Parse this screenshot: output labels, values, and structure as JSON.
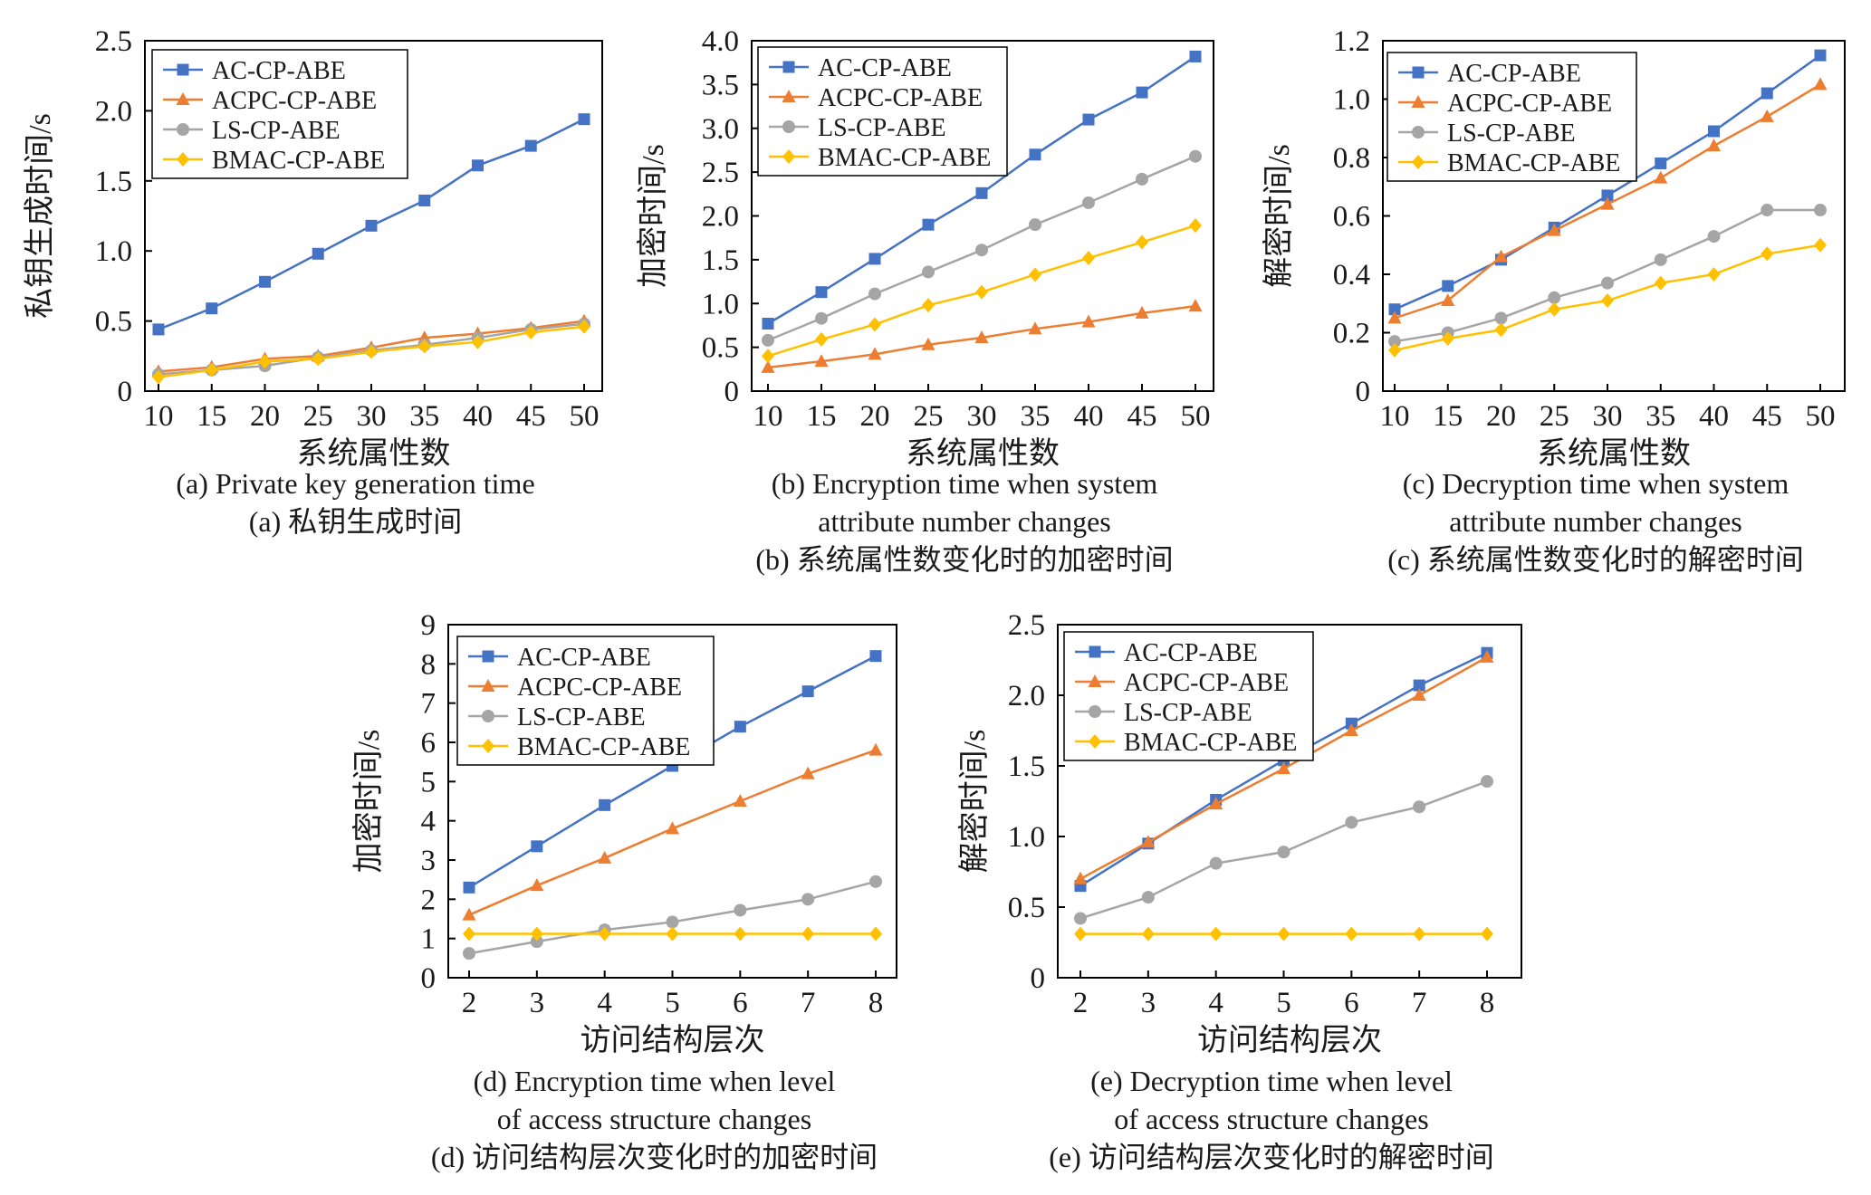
{
  "figure": {
    "series_names": [
      "AC-CP-ABE",
      "ACPC-CP-ABE",
      "LS-CP-ABE",
      "BMAC-CP-ABE"
    ],
    "series_colors": [
      "#4472c4",
      "#ed7d31",
      "#a5a5a5",
      "#ffc000"
    ],
    "series_markers": [
      "square",
      "triangle",
      "circle",
      "diamond"
    ]
  },
  "chart_data": [
    {
      "id": "a",
      "type": "line",
      "x": [
        10,
        15,
        20,
        25,
        30,
        35,
        40,
        45,
        50
      ],
      "ylim": [
        0,
        2.5
      ],
      "yticks": [
        "0",
        "0.5",
        "1.0",
        "1.5",
        "2.0",
        "2.5"
      ],
      "xlabel": "系统属性数",
      "ylabel": "私钥生成时间/s",
      "caption": [
        "(a) Private key generation time",
        "(a) 私钥生成时间"
      ],
      "series": [
        {
          "name": "AC-CP-ABE",
          "values": [
            0.44,
            0.59,
            0.78,
            0.98,
            1.18,
            1.36,
            1.61,
            1.75,
            1.94
          ]
        },
        {
          "name": "ACPC-CP-ABE",
          "values": [
            0.14,
            0.17,
            0.23,
            0.25,
            0.31,
            0.38,
            0.41,
            0.45,
            0.5
          ]
        },
        {
          "name": "LS-CP-ABE",
          "values": [
            0.12,
            0.15,
            0.18,
            0.24,
            0.29,
            0.33,
            0.38,
            0.44,
            0.48
          ]
        },
        {
          "name": "BMAC-CP-ABE",
          "values": [
            0.1,
            0.15,
            0.21,
            0.23,
            0.28,
            0.32,
            0.35,
            0.42,
            0.46
          ]
        }
      ]
    },
    {
      "id": "b",
      "type": "line",
      "x": [
        10,
        15,
        20,
        25,
        30,
        35,
        40,
        45,
        50
      ],
      "ylim": [
        0,
        4.0
      ],
      "yticks": [
        "0",
        "0.5",
        "1.0",
        "1.5",
        "2.0",
        "2.5",
        "3.0",
        "3.5",
        "4.0"
      ],
      "xlabel": "系统属性数",
      "ylabel": "加密时间/s",
      "caption": [
        "(b) Encryption time when system",
        "attribute number changes",
        "(b) 系统属性数变化时的加密时间"
      ],
      "series": [
        {
          "name": "AC-CP-ABE",
          "values": [
            0.77,
            1.13,
            1.51,
            1.9,
            2.26,
            2.7,
            3.1,
            3.41,
            3.82
          ]
        },
        {
          "name": "ACPC-CP-ABE",
          "values": [
            0.27,
            0.34,
            0.42,
            0.53,
            0.61,
            0.71,
            0.79,
            0.89,
            0.97
          ]
        },
        {
          "name": "LS-CP-ABE",
          "values": [
            0.58,
            0.83,
            1.11,
            1.36,
            1.61,
            1.9,
            2.15,
            2.42,
            2.68
          ]
        },
        {
          "name": "BMAC-CP-ABE",
          "values": [
            0.4,
            0.59,
            0.76,
            0.98,
            1.13,
            1.33,
            1.52,
            1.7,
            1.89
          ]
        }
      ]
    },
    {
      "id": "c",
      "type": "line",
      "x": [
        10,
        15,
        20,
        25,
        30,
        35,
        40,
        45,
        50
      ],
      "ylim": [
        0,
        1.2
      ],
      "yticks": [
        "0",
        "0.2",
        "0.4",
        "0.6",
        "0.8",
        "1.0",
        "1.2"
      ],
      "xlabel": "系统属性数",
      "ylabel": "解密时间/s",
      "caption": [
        "(c) Decryption time when system",
        "attribute number changes",
        "(c) 系统属性数变化时的解密时间"
      ],
      "series": [
        {
          "name": "AC-CP-ABE",
          "values": [
            0.28,
            0.36,
            0.45,
            0.56,
            0.67,
            0.78,
            0.89,
            1.02,
            1.15
          ]
        },
        {
          "name": "ACPC-CP-ABE",
          "values": [
            0.25,
            0.31,
            0.46,
            0.55,
            0.64,
            0.73,
            0.84,
            0.94,
            1.05
          ]
        },
        {
          "name": "LS-CP-ABE",
          "values": [
            0.17,
            0.2,
            0.25,
            0.32,
            0.37,
            0.45,
            0.53,
            0.62,
            0.62
          ]
        },
        {
          "name": "BMAC-CP-ABE",
          "values": [
            0.14,
            0.18,
            0.21,
            0.28,
            0.31,
            0.37,
            0.4,
            0.47,
            0.5
          ]
        }
      ]
    },
    {
      "id": "d",
      "type": "line",
      "x": [
        2,
        3,
        4,
        5,
        6,
        7,
        8
      ],
      "ylim": [
        0,
        9
      ],
      "yticks": [
        "0",
        "1",
        "2",
        "3",
        "4",
        "5",
        "6",
        "7",
        "8",
        "9"
      ],
      "xlabel": "访问结构层次",
      "ylabel": "加密时间/s",
      "caption": [
        "(d) Encryption time when level",
        "of access structure changes",
        "(d) 访问结构层次变化时的加密时间"
      ],
      "series": [
        {
          "name": "AC-CP-ABE",
          "values": [
            2.3,
            3.35,
            4.4,
            5.4,
            6.4,
            7.3,
            8.2
          ]
        },
        {
          "name": "ACPC-CP-ABE",
          "values": [
            1.6,
            2.35,
            3.05,
            3.8,
            4.5,
            5.2,
            5.8
          ]
        },
        {
          "name": "LS-CP-ABE",
          "values": [
            0.62,
            0.92,
            1.22,
            1.42,
            1.72,
            2.0,
            2.45
          ]
        },
        {
          "name": "BMAC-CP-ABE",
          "values": [
            1.12,
            1.12,
            1.12,
            1.12,
            1.12,
            1.12,
            1.12
          ]
        }
      ]
    },
    {
      "id": "e",
      "type": "line",
      "x": [
        2,
        3,
        4,
        5,
        6,
        7,
        8
      ],
      "ylim": [
        0,
        2.5
      ],
      "yticks": [
        "0",
        "0.5",
        "1.0",
        "1.5",
        "2.0",
        "2.5"
      ],
      "xlabel": "访问结构层次",
      "ylabel": "解密时间/s",
      "caption": [
        "(e) Decryption time when level",
        "of access structure changes",
        "(e) 访问结构层次变化时的解密时间"
      ],
      "series": [
        {
          "name": "AC-CP-ABE",
          "values": [
            0.65,
            0.95,
            1.26,
            1.54,
            1.8,
            2.07,
            2.3
          ]
        },
        {
          "name": "ACPC-CP-ABE",
          "values": [
            0.7,
            0.96,
            1.23,
            1.48,
            1.75,
            2.0,
            2.27
          ]
        },
        {
          "name": "LS-CP-ABE",
          "values": [
            0.42,
            0.57,
            0.81,
            0.89,
            1.1,
            1.21,
            1.39
          ]
        },
        {
          "name": "BMAC-CP-ABE",
          "values": [
            0.31,
            0.31,
            0.31,
            0.31,
            0.31,
            0.31,
            0.31
          ]
        }
      ]
    }
  ]
}
